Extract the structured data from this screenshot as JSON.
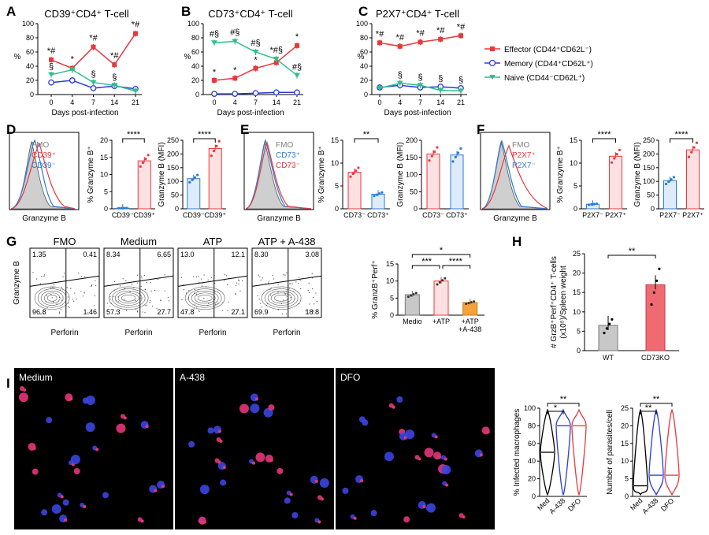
{
  "colors": {
    "effector": "#e8383d",
    "memory": "#2b3bd6",
    "naive": "#2fbf8a",
    "fmo": "#bfbfbf",
    "cd39pos": "#e8383d",
    "cd39neg": "#2b7bd6",
    "atp": "#f4a3aa",
    "a438": "#f5a23c",
    "medio": "#c8c8c8",
    "wt": "#c8c8c8",
    "ko": "#f06a72",
    "violin_med": "#000000",
    "violin_a438": "#2b3bd6",
    "violin_dfo": "#e8383d"
  },
  "panel_letters": {
    "A": "A",
    "B": "B",
    "C": "C",
    "D": "D",
    "E": "E",
    "F": "F",
    "G": "G",
    "H": "H",
    "I": "I"
  },
  "panelA": {
    "title": "CD39⁺CD4⁺ T-cell",
    "xlabel": "Days post-infection",
    "ylabel": "%",
    "chart_data": {
      "type": "line",
      "x": [
        0,
        4,
        7,
        14,
        21
      ],
      "ylim": [
        0,
        100
      ],
      "series": [
        {
          "name": "Effector",
          "values": [
            49,
            37,
            67,
            42,
            86
          ]
        },
        {
          "name": "Memory",
          "values": [
            17,
            20,
            9,
            12,
            8
          ]
        },
        {
          "name": "Naive",
          "values": [
            28,
            35,
            17,
            13,
            5
          ]
        }
      ],
      "annotations": [
        {
          "x": 0,
          "text": "*#"
        },
        {
          "x": 4,
          "text": "*"
        },
        {
          "x": 7,
          "text": "*#"
        },
        {
          "x": 14,
          "text": "*#"
        },
        {
          "x": 21,
          "text": "*#"
        }
      ],
      "lower_annotations": [
        {
          "x": 0,
          "text": "§"
        },
        {
          "x": 7,
          "text": "§"
        },
        {
          "x": 14,
          "text": "§"
        }
      ]
    }
  },
  "panelB": {
    "title": "CD73⁺CD4⁺ T-cell",
    "xlabel": "Days post-infection",
    "ylabel": "%",
    "chart_data": {
      "type": "line",
      "x": [
        0,
        4,
        7,
        14,
        21
      ],
      "ylim": [
        0,
        100
      ],
      "series": [
        {
          "name": "Effector",
          "values": [
            20,
            23,
            37,
            45,
            69
          ]
        },
        {
          "name": "Memory",
          "values": [
            1,
            1,
            2,
            3,
            3
          ]
        },
        {
          "name": "Naive",
          "values": [
            73,
            75,
            60,
            50,
            27
          ]
        }
      ],
      "annotations": [
        {
          "x": 0,
          "text": "#§"
        },
        {
          "x": 4,
          "text": "#§"
        },
        {
          "x": 7,
          "text": "#§"
        },
        {
          "x": 14,
          "text": "*#§"
        },
        {
          "x": 21,
          "text": "*"
        }
      ],
      "lower_annotations": [
        {
          "x": 0,
          "text": "*"
        },
        {
          "x": 4,
          "text": "*"
        },
        {
          "x": 7,
          "text": "*"
        },
        {
          "x": 21,
          "text": "#§"
        }
      ]
    }
  },
  "panelC": {
    "title": "P2X7⁺CD4⁺ T-cell",
    "xlabel": "Days post-infection",
    "ylabel": "%",
    "chart_data": {
      "type": "line",
      "x": [
        0,
        4,
        7,
        14,
        21
      ],
      "ylim": [
        0,
        100
      ],
      "series": [
        {
          "name": "Effector",
          "values": [
            73,
            68,
            74,
            78,
            83
          ]
        },
        {
          "name": "Memory",
          "values": [
            10,
            13,
            10,
            11,
            9
          ]
        },
        {
          "name": "Naive",
          "values": [
            9,
            16,
            13,
            6,
            5
          ]
        }
      ],
      "annotations": [
        {
          "x": 0,
          "text": "*#"
        },
        {
          "x": 4,
          "text": "*#"
        },
        {
          "x": 7,
          "text": "*#"
        },
        {
          "x": 14,
          "text": "*#"
        },
        {
          "x": 21,
          "text": "*#"
        }
      ],
      "lower_annotations": [
        {
          "x": 4,
          "text": "§"
        },
        {
          "x": 7,
          "text": "§"
        },
        {
          "x": 14,
          "text": "§"
        },
        {
          "x": 21,
          "text": "§"
        }
      ]
    }
  },
  "legend": {
    "effector": "Effector (CD44⁺CD62L⁻)",
    "memory": "Memory (CD44⁺CD62L⁺)",
    "naive": "Naive (CD44⁻CD62L⁺)"
  },
  "panelD": {
    "hist_labels": [
      "FMO",
      "CD39⁺",
      "CD39⁻"
    ],
    "hist_xlabel": "Granzyme B",
    "bar1": {
      "ylabel": "% Granzyme B⁺",
      "sig": "****",
      "chart_data": {
        "type": "bar",
        "categories": [
          "CD39⁻",
          "CD39⁺"
        ],
        "values": [
          0.2,
          14
        ],
        "ylim": [
          0,
          20
        ],
        "yticks": [
          0,
          5,
          10,
          15,
          20
        ]
      }
    },
    "bar2": {
      "ylabel": "Granzyme B (MFI)",
      "sig": "****",
      "chart_data": {
        "type": "bar",
        "categories": [
          "CD39⁻",
          "CD39⁺"
        ],
        "values": [
          110,
          220
        ],
        "ylim": [
          0,
          250
        ],
        "yticks": [
          0,
          50,
          100,
          150,
          200,
          250
        ]
      }
    }
  },
  "panelE": {
    "hist_labels": [
      "FMO",
      "CD73⁺",
      "CD73⁻"
    ],
    "hist_xlabel": "Granzyme B",
    "bar1": {
      "ylabel": "% Granzyme B⁺",
      "sig": "**",
      "chart_data": {
        "type": "bar",
        "categories": [
          "CD73⁻",
          "CD73⁺"
        ],
        "values": [
          8,
          3.2
        ],
        "ylim": [
          0,
          15
        ],
        "yticks": [
          0,
          5,
          10,
          15
        ]
      }
    },
    "bar2": {
      "ylabel": "Granzyme B (MFI)",
      "sig": "",
      "chart_data": {
        "type": "bar",
        "categories": [
          "CD73⁻",
          "CD73⁺"
        ],
        "values": [
          160,
          157
        ],
        "ylim": [
          0,
          200
        ],
        "yticks": [
          0,
          50,
          100,
          150,
          200
        ]
      }
    }
  },
  "panelF": {
    "hist_labels": [
      "FMO",
      "P2X7⁺",
      "P2X7⁻"
    ],
    "hist_xlabel": "Granzyme B",
    "bar1": {
      "ylabel": "% Granzyme B⁺",
      "sig": "****",
      "chart_data": {
        "type": "bar",
        "categories": [
          "P2X7⁻",
          "P2X7⁺"
        ],
        "values": [
          1,
          11.5
        ],
        "ylim": [
          0,
          15
        ],
        "yticks": [
          0,
          5,
          10,
          15
        ]
      }
    },
    "bar2": {
      "ylabel": "Granzyme B (MFI)",
      "sig": "****",
      "chart_data": {
        "type": "bar",
        "categories": [
          "P2X7⁻",
          "P2X7⁺"
        ],
        "values": [
          103,
          215
        ],
        "ylim": [
          0,
          250
        ],
        "yticks": [
          0,
          50,
          100,
          150,
          200,
          250
        ]
      }
    }
  },
  "panelG": {
    "flow": [
      {
        "title": "FMO",
        "q": [
          "1.35",
          "0.41",
          "96.8",
          "1.46"
        ]
      },
      {
        "title": "Medium",
        "q": [
          "8.34",
          "6.65",
          "57.3",
          "27.7"
        ]
      },
      {
        "title": "ATP",
        "q": [
          "13.0",
          "12.1",
          "47.8",
          "27.1"
        ]
      },
      {
        "title": "ATP + A-438",
        "q": [
          "8.30",
          "3.08",
          "69.9",
          "18.8"
        ]
      }
    ],
    "flow_ylabel": "Granzyme B",
    "flow_xlabel": "Perforin",
    "bar": {
      "ylabel": "% GranzB⁺Perf⁺",
      "sigs": [
        "*",
        "***",
        "****"
      ],
      "chart_data": {
        "type": "bar",
        "categories": [
          "Medio",
          "+ATP",
          "+ATP +A-438"
        ],
        "values": [
          6,
          10,
          3.7
        ],
        "ylim": [
          0,
          15
        ],
        "yticks": [
          0,
          5,
          10,
          15
        ]
      }
    }
  },
  "panelH": {
    "ylabel": "# GrzB⁺Perf⁺CD4⁺ T-cells (x10⁵)/Spleen weight (g)",
    "sig": "**",
    "chart_data": {
      "type": "bar",
      "categories": [
        "WT",
        "CD73KO"
      ],
      "values": [
        6.5,
        17
      ],
      "ylim": [
        0,
        25
      ],
      "yticks": [
        0,
        5,
        10,
        15,
        20,
        25
      ]
    }
  },
  "panelI": {
    "micro_labels": [
      "Medium",
      "A-438",
      "DFO"
    ],
    "violin1": {
      "ylabel": "% Infected macrophages",
      "sigs": [
        "*",
        "**"
      ],
      "chart_data": {
        "type": "violin",
        "categories": [
          "Med",
          "A-438",
          "DFO"
        ],
        "medians": [
          50,
          80,
          80
        ],
        "ylim": [
          0,
          100
        ],
        "yticks": [
          0,
          20,
          40,
          60,
          80,
          100
        ]
      }
    },
    "violin2": {
      "ylabel": "Number of parasites/cell",
      "sigs": [
        "**",
        "**"
      ],
      "chart_data": {
        "type": "violin",
        "categories": [
          "Med",
          "A-438",
          "DFO"
        ],
        "medians": [
          3,
          6,
          6
        ],
        "ylim": [
          0,
          25
        ],
        "yticks": [
          0,
          5,
          10,
          15,
          20,
          25
        ]
      }
    }
  }
}
